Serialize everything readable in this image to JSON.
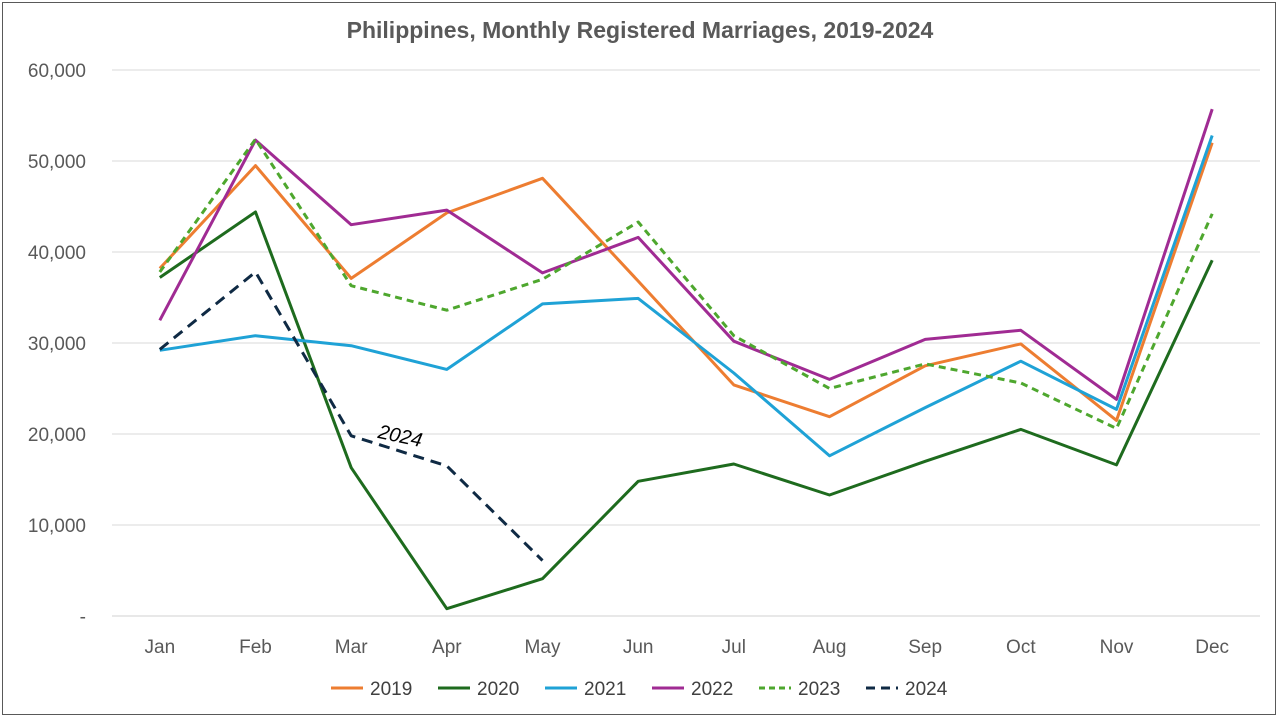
{
  "chart_data": {
    "type": "line",
    "title": "Philippines, Monthly Registered Marriages, 2019-2024",
    "xlabel": "",
    "ylabel": "",
    "categories": [
      "Jan",
      "Feb",
      "Mar",
      "Apr",
      "May",
      "Jun",
      "Jul",
      "Aug",
      "Sep",
      "Oct",
      "Nov",
      "Dec"
    ],
    "ylim": [
      0,
      60000
    ],
    "yticks": [
      0,
      10000,
      20000,
      30000,
      40000,
      50000,
      60000
    ],
    "ytick_labels": [
      "-",
      "10,000",
      "20,000",
      "30,000",
      "40,000",
      "50,000",
      "60,000"
    ],
    "grid": true,
    "legend_position": "bottom",
    "series": [
      {
        "name": "2019",
        "color": "#ED7D31",
        "dash": "solid",
        "values": [
          38200,
          49500,
          37100,
          44300,
          48100,
          36800,
          25400,
          21900,
          27500,
          29900,
          21500,
          52000
        ]
      },
      {
        "name": "2020",
        "color": "#1E6B1E",
        "dash": "solid",
        "values": [
          37200,
          44400,
          16300,
          800,
          4100,
          14800,
          16700,
          13300,
          17000,
          20500,
          16600,
          39100
        ]
      },
      {
        "name": "2021",
        "color": "#1FA2D6",
        "dash": "solid",
        "values": [
          29200,
          30800,
          29700,
          27100,
          34300,
          34900,
          26700,
          17600,
          22900,
          28000,
          22700,
          52800
        ]
      },
      {
        "name": "2022",
        "color": "#A02B93",
        "dash": "solid",
        "values": [
          32500,
          52300,
          43000,
          44600,
          37700,
          41600,
          30200,
          26000,
          30400,
          31400,
          23800,
          55700
        ]
      },
      {
        "name": "2023",
        "color": "#4EA72E",
        "dash": "dashed",
        "values": [
          37800,
          52400,
          36300,
          33600,
          37000,
          43300,
          30800,
          25000,
          27700,
          25600,
          20600,
          44200
        ]
      },
      {
        "name": "2024",
        "color": "#0F2A44",
        "dash": "dashed",
        "values": [
          29300,
          37800,
          19800,
          16500,
          6100,
          null,
          null,
          null,
          null,
          null,
          null,
          null
        ]
      }
    ],
    "annotations": [
      {
        "text": "2024",
        "series": "2024",
        "month": "Mar"
      }
    ]
  }
}
